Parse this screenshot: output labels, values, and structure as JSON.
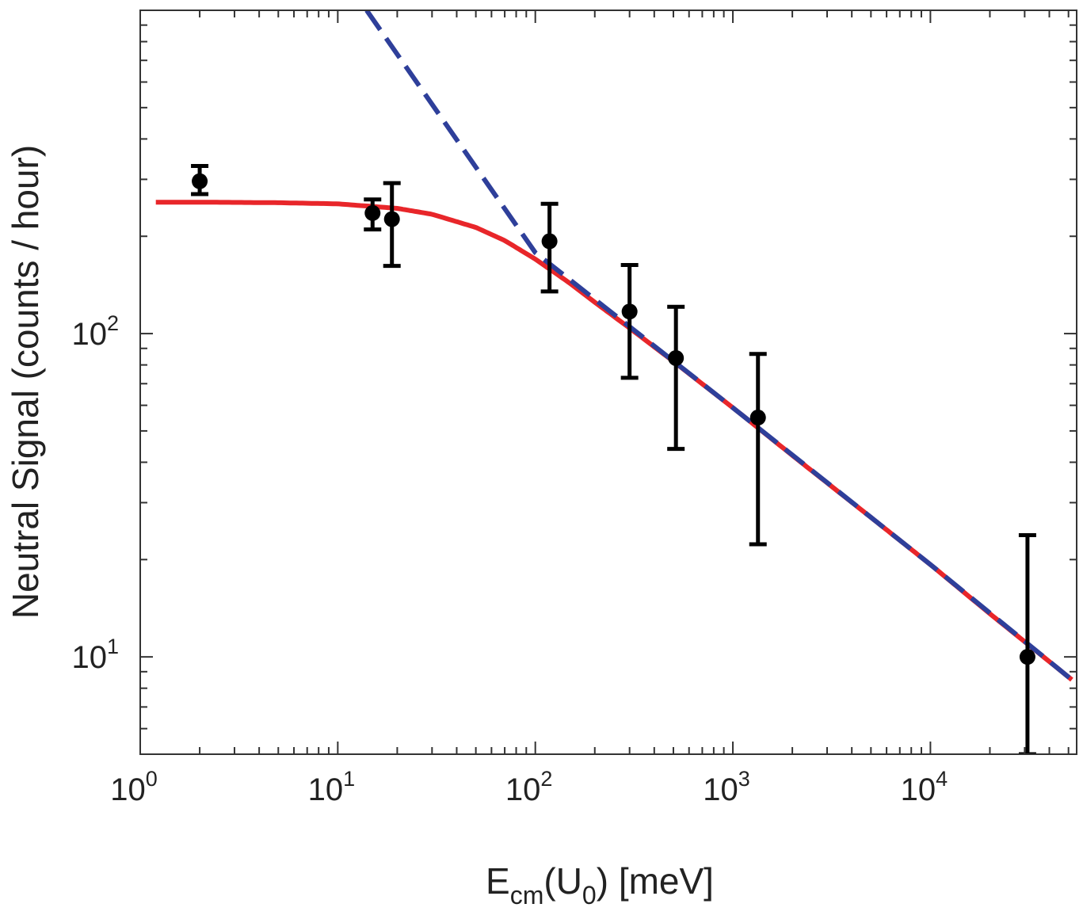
{
  "chart_data": {
    "type": "scatter",
    "xscale": "log",
    "yscale": "log",
    "xlim": [
      1,
      55000
    ],
    "ylim": [
      5,
      1000
    ],
    "grid": false,
    "legend": "none",
    "xlabel": {
      "main": "E",
      "sub1": "cm",
      "mid": "(U",
      "sub2": "0",
      "tail": ") [meV]"
    },
    "ylabel": "Neutral Signal (counts / hour)",
    "x_ticks": [
      {
        "value": 1,
        "base": "10",
        "exp": "0"
      },
      {
        "value": 10,
        "base": "10",
        "exp": "1"
      },
      {
        "value": 100,
        "base": "10",
        "exp": "2"
      },
      {
        "value": 1000,
        "base": "10",
        "exp": "3"
      },
      {
        "value": 10000,
        "base": "10",
        "exp": "4"
      }
    ],
    "y_ticks": [
      {
        "value": 10,
        "base": "10",
        "exp": "1"
      },
      {
        "value": 100,
        "base": "10",
        "exp": "2"
      }
    ],
    "points": [
      {
        "x": 2.0,
        "y": 296,
        "ylow": 270,
        "yhigh": 330
      },
      {
        "x": 15.0,
        "y": 236,
        "ylow": 210,
        "yhigh": 260
      },
      {
        "x": 18.8,
        "y": 226,
        "ylow": 162,
        "yhigh": 292
      },
      {
        "x": 118,
        "y": 193,
        "ylow": 135,
        "yhigh": 252
      },
      {
        "x": 300,
        "y": 117,
        "ylow": 73,
        "yhigh": 163
      },
      {
        "x": 515,
        "y": 84,
        "ylow": 44,
        "yhigh": 121
      },
      {
        "x": 1340,
        "y": 55,
        "ylow": 22.3,
        "yhigh": 86.5
      },
      {
        "x": 31000,
        "y": 10,
        "ylow": 5,
        "yhigh": 23.8
      }
    ],
    "series": [
      {
        "style": "solid",
        "color": "#e8262a",
        "x": [
          1.2,
          2,
          5,
          10,
          20,
          30,
          50,
          70,
          100,
          150,
          200,
          300,
          500,
          1000,
          2000,
          5000,
          10000,
          20000,
          52000
        ],
        "y": [
          255,
          255,
          254,
          252,
          244,
          234,
          213,
          194,
          170,
          143,
          125,
          104,
          82,
          59,
          42,
          27,
          19.3,
          13.6,
          8.5
        ]
      },
      {
        "style": "dashed",
        "color": "#2e3f9a",
        "x": [
          14,
          100,
          1000,
          10000,
          52000
        ],
        "y": [
          1000,
          178,
          59,
          19.3,
          8.5
        ]
      }
    ]
  }
}
